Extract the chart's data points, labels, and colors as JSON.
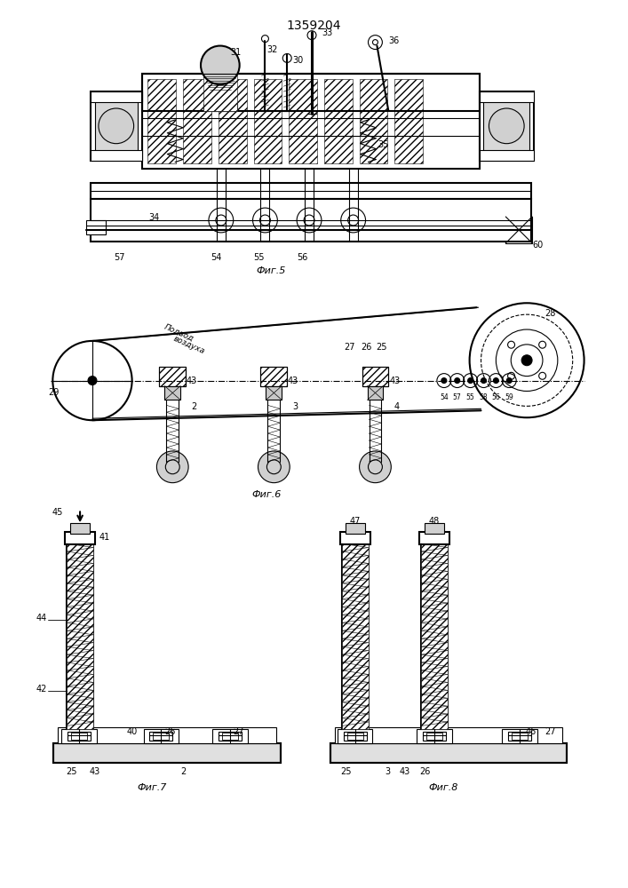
{
  "title": "1359204",
  "background": "#ffffff",
  "line_color": "#000000",
  "fig5_caption": "Фиг.5",
  "fig6_caption": "Фиг.6",
  "fig7_caption": "Фиг.7",
  "fig8_caption": "Фиг.8",
  "podvod_line1": "Подвод",
  "podvod_line2": "воздуха"
}
